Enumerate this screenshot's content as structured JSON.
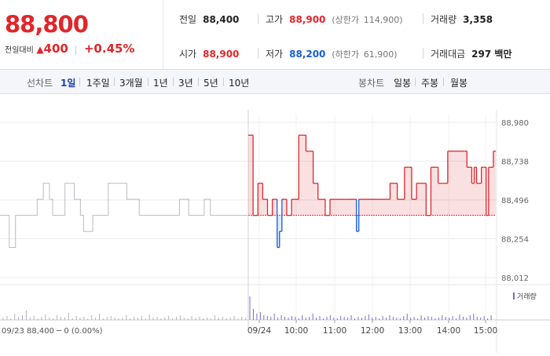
{
  "quote": {
    "price": "88,800",
    "change_label": "전일대비",
    "change_arrow": "▲",
    "change_amount": "400",
    "change_pct": "+0.45%",
    "prev_close_label": "전일",
    "prev_close": "88,400",
    "high_label": "고가",
    "high": "88,900",
    "upper_limit_label": "(상한가",
    "upper_limit": "114,900)",
    "volume_label": "거래량",
    "volume": "3,358",
    "open_label": "시가",
    "open": "88,900",
    "low_label": "저가",
    "low": "88,200",
    "lower_limit_label": "(하한가",
    "lower_limit": "61,900)",
    "turnover_label": "거래대금",
    "turnover": "297 백만"
  },
  "colors": {
    "up": "#e0262a",
    "down": "#1a5dd6",
    "prev": "#b8bcc2"
  },
  "periods": {
    "title": "선차트",
    "items": [
      "1일",
      "1주일",
      "3개월",
      "1년",
      "3년",
      "5년",
      "10년"
    ],
    "active": "1일",
    "candle_title": "봉차트",
    "candle_items": [
      "일봉",
      "주봉",
      "월봉"
    ]
  },
  "chart_data": {
    "type": "line",
    "y_ticks": [
      "88,980",
      "88,738",
      "88,496",
      "88,254",
      "88,012"
    ],
    "ylim": [
      88012,
      88980
    ],
    "baseline": 88400,
    "x_ticks": [
      "09/24",
      "10:00",
      "11:00",
      "12:00",
      "13:00",
      "14:00",
      "15:00"
    ],
    "prev_day_label": "09/23",
    "prev_day_note": "88,400 ─ 0 (0.00%)",
    "volume_legend": "거래량",
    "prev_day_series": [
      88400,
      88400,
      88400,
      88200,
      88200,
      88400,
      88400,
      88400,
      88400,
      88400,
      88400,
      88400,
      88500,
      88500,
      88600,
      88600,
      88500,
      88400,
      88400,
      88400,
      88400,
      88600,
      88600,
      88600,
      88500,
      88500,
      88400,
      88300,
      88300,
      88300,
      88400,
      88400,
      88400,
      88400,
      88400,
      88600,
      88600,
      88600,
      88600,
      88600,
      88600,
      88500,
      88500,
      88500,
      88500,
      88400,
      88400,
      88400,
      88400,
      88400,
      88400,
      88400,
      88400,
      88400,
      88400,
      88400,
      88400,
      88400,
      88500,
      88500,
      88500,
      88400,
      88400,
      88400,
      88400,
      88400,
      88500,
      88500,
      88400,
      88400,
      88400,
      88400,
      88400,
      88400,
      88400,
      88400,
      88400,
      88400,
      88400,
      88400
    ],
    "today_series": [
      88900,
      88900,
      88400,
      88400,
      88600,
      88600,
      88500,
      88500,
      88400,
      88400,
      88500,
      88500,
      88200,
      88300,
      88500,
      88500,
      88400,
      88400,
      88500,
      88500,
      88500,
      88900,
      88900,
      88900,
      88800,
      88800,
      88800,
      88600,
      88600,
      88500,
      88500,
      88500,
      88400,
      88400,
      88500,
      88500,
      88500,
      88500,
      88500,
      88500,
      88500,
      88500,
      88500,
      88500,
      88500,
      88300,
      88500,
      88500,
      88500,
      88500,
      88500,
      88500,
      88500,
      88500,
      88500,
      88500,
      88500,
      88500,
      88500,
      88600,
      88600,
      88600,
      88500,
      88500,
      88500,
      88700,
      88700,
      88700,
      88500,
      88500,
      88600,
      88600,
      88600,
      88600,
      88400,
      88400,
      88700,
      88700,
      88700,
      88600,
      88600,
      88600,
      88600,
      88800,
      88800,
      88800,
      88800,
      88800,
      88800,
      88800,
      88800,
      88700,
      88700,
      88600,
      88700,
      88600,
      88600,
      88700,
      88700,
      88400,
      88700,
      88700,
      88800
    ]
  }
}
